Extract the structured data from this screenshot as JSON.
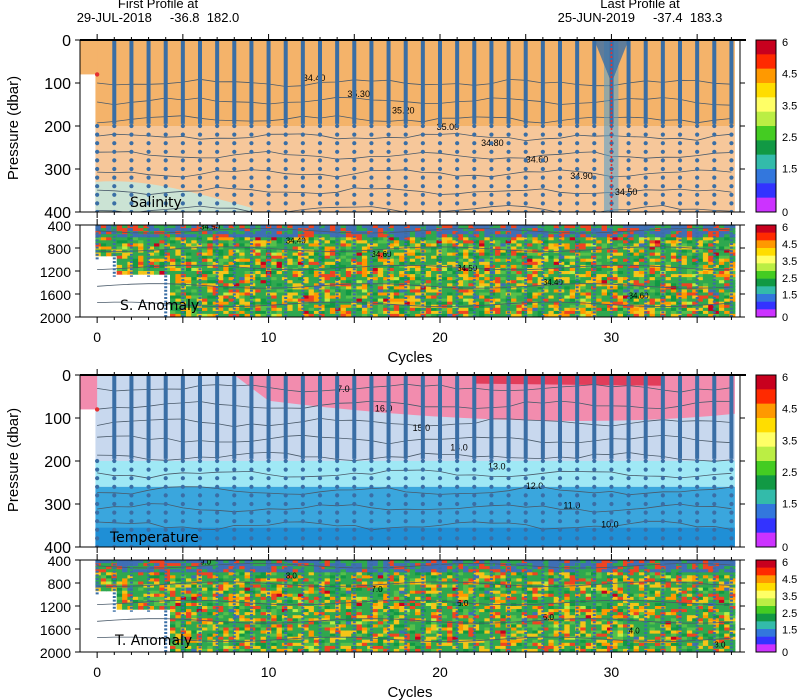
{
  "header": {
    "first_label": "First Profile at",
    "first_value": "29-JUL-2018     -36.8  182.0",
    "last_label": "Last Profile at",
    "last_value": "25-JUN-2019     -37.4  183.3"
  },
  "colorbar": {
    "ticks": [
      "6",
      "4.5",
      "3.5",
      "2.5",
      "1.5",
      "0"
    ],
    "colors": [
      "#c8001e",
      "#ff2a00",
      "#ff9900",
      "#ffdd00",
      "#ffff66",
      "#bbee44",
      "#44cc22",
      "#119944",
      "#33bbaa",
      "#3377dd",
      "#3333ff",
      "#cc33ff"
    ]
  },
  "colors": {
    "profile_dot": "#3a6ea5",
    "contour": "#4a5a6a",
    "sal_upper": "#f4b36a",
    "sal_mid": "#f6c79a",
    "sal_deep": "#cbe3d4",
    "temp_top": "#f28cae",
    "temp_upper": "#c8d8ee",
    "temp_mid": "#9fe8f5",
    "temp_deep": "#3aa6dd",
    "anom_base": "#2fa84f",
    "anom_warm": "#f5c518",
    "anom_hot": "#ee4422",
    "anom_blue": "#3f6fb5"
  },
  "chart_data": [
    {
      "type": "heatmap",
      "title": "Salinity",
      "ylabel": "Pressure (dbar)",
      "xlabel": "",
      "xlim": [
        -1,
        37.5
      ],
      "ylim": [
        400,
        0
      ],
      "x_ticks": [
        "0",
        "10",
        "20",
        "30"
      ],
      "y_ticks": [
        "0",
        "100",
        "200",
        "300",
        "400"
      ],
      "contour_labels": [
        "34.40",
        "35.30",
        "35.20",
        "35.00",
        "34.80",
        "34.60",
        "34.90",
        "34.50"
      ],
      "x_profiles": [
        0,
        1,
        2,
        3,
        4,
        5,
        6,
        7,
        8,
        9,
        10,
        11,
        12,
        13,
        14,
        15,
        16,
        17,
        18,
        19,
        20,
        21,
        22,
        23,
        24,
        25,
        26,
        27,
        28,
        29,
        30,
        31,
        32,
        33,
        34,
        35,
        36,
        37
      ]
    },
    {
      "type": "heatmap",
      "title": "S. Anomaly",
      "xlabel": "Cycles",
      "xlim": [
        -1,
        37.5
      ],
      "ylim": [
        2000,
        400
      ],
      "x_ticks": [
        "0",
        "10",
        "20",
        "30"
      ],
      "y_ticks": [
        "400",
        "800",
        "1200",
        "1600",
        "2000"
      ],
      "contour_labels": [
        "34.50",
        "34.40",
        "34.60",
        "34.50",
        "34.40",
        "34.60"
      ],
      "colorbar_ticks": [
        "6",
        "4.5",
        "3.5",
        "2.5",
        "1.5",
        "0"
      ]
    },
    {
      "type": "heatmap",
      "title": "Temperature",
      "ylabel": "Pressure (dbar)",
      "xlabel": "",
      "xlim": [
        -1,
        37.5
      ],
      "ylim": [
        400,
        0
      ],
      "x_ticks": [
        "0",
        "10",
        "20",
        "30"
      ],
      "y_ticks": [
        "0",
        "100",
        "200",
        "300",
        "400"
      ],
      "contour_labels": [
        "7.0",
        "16.0",
        "15.0",
        "14.0",
        "13.0",
        "12.0",
        "11.0",
        "10.0"
      ]
    },
    {
      "type": "heatmap",
      "title": "T. Anomaly",
      "xlabel": "Cycles",
      "xlim": [
        -1,
        37.5
      ],
      "ylim": [
        2000,
        400
      ],
      "x_ticks": [
        "0",
        "10",
        "20",
        "30"
      ],
      "y_ticks": [
        "400",
        "800",
        "1200",
        "1600",
        "2000"
      ],
      "contour_labels": [
        "9.0",
        "8.0",
        "7.0",
        "6.0",
        "5.0",
        "4.0",
        "3.0"
      ],
      "colorbar_ticks": [
        "6",
        "4.5",
        "3.5",
        "2.5",
        "1.5",
        "0"
      ]
    }
  ]
}
